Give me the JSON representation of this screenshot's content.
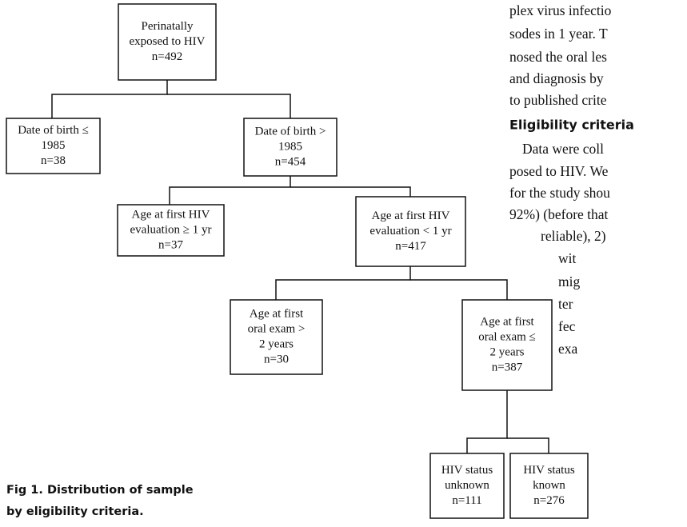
{
  "nodes": [
    {
      "lines": [
        "Perinatally",
        "exposed to HIV",
        "n=492"
      ]
    },
    {
      "lines": [
        "Date of birth ≤",
        "1985",
        "n=38"
      ]
    },
    {
      "lines": [
        "Date of birth >",
        "1985",
        "n=454"
      ]
    },
    {
      "lines": [
        "Age at first HIV",
        "evaluation ≥ 1 yr",
        "n=37"
      ]
    },
    {
      "lines": [
        "Age at first HIV",
        "evaluation < 1 yr",
        "n=417"
      ]
    },
    {
      "lines": [
        "Age at first",
        "oral exam >",
        "2 years",
        "n=30"
      ]
    },
    {
      "lines": [
        "Age at first",
        "oral exam ≤",
        "2 years",
        "n=387"
      ]
    },
    {
      "lines": [
        "HIV status",
        "unknown",
        "n=111"
      ]
    },
    {
      "lines": [
        "HIV status",
        "known",
        "n=276"
      ]
    }
  ],
  "caption": [
    "Fig 1. Distribution of sample",
    "by eligibility criteria."
  ],
  "body": {
    "lines_before": [
      "plex virus infectio",
      "sodes in 1 year. T",
      "nosed the oral les",
      "and diagnosis by",
      "to published crite"
    ],
    "heading": "Eligibility criteria",
    "lines_after": [
      "Data were coll",
      "posed to HIV. We",
      "for the study shou",
      "92%) (before that",
      "reliable), 2)",
      "wit",
      "mig",
      "ter",
      "fec",
      "exa"
    ]
  }
}
